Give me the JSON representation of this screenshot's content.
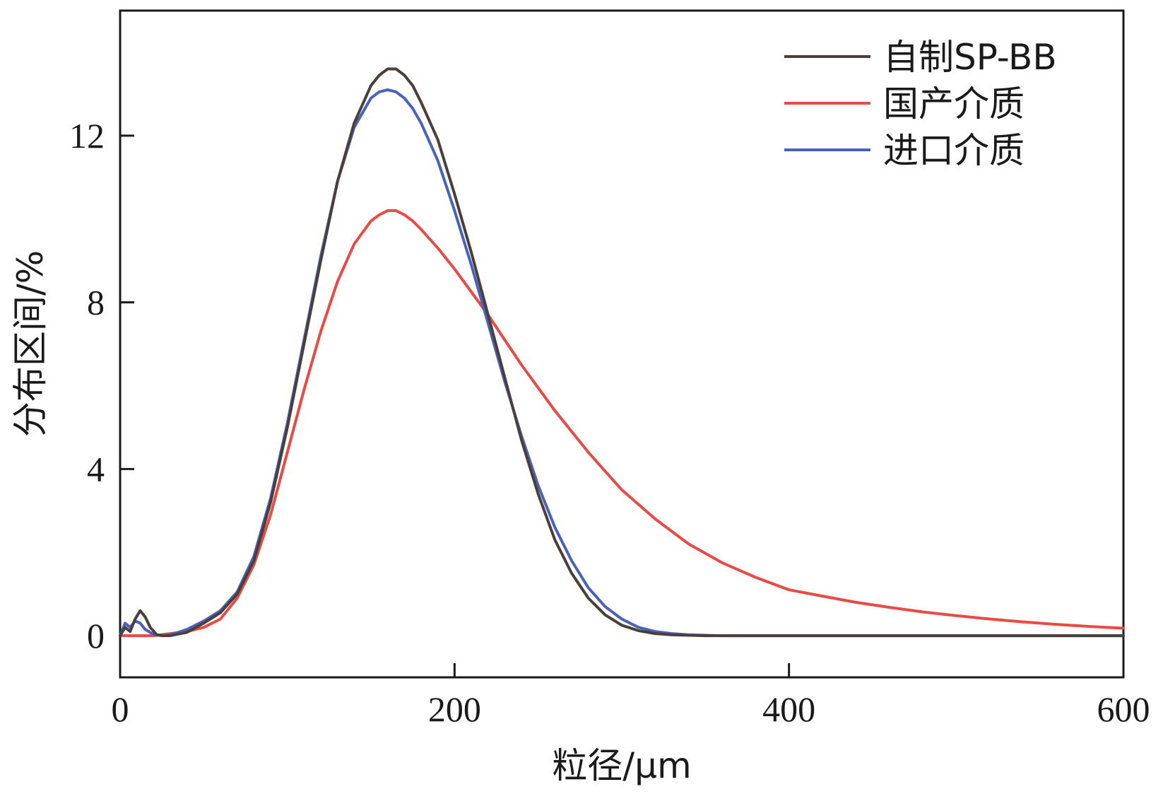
{
  "chart_data": {
    "type": "line",
    "title": "",
    "xlabel": "粒径/μm",
    "ylabel": "分布区间/%",
    "xlim": [
      0,
      600
    ],
    "ylim": [
      -1,
      15
    ],
    "xticks": [
      0,
      200,
      400,
      600
    ],
    "yticks": [
      0,
      4,
      8,
      12
    ],
    "grid": false,
    "legend_position": "top-right",
    "series": [
      {
        "name": "自制SP-BB",
        "color": "#4a3f3a",
        "x": [
          0,
          3,
          6,
          9,
          12,
          15,
          18,
          22,
          26,
          30,
          40,
          50,
          60,
          70,
          80,
          90,
          100,
          110,
          120,
          130,
          140,
          150,
          155,
          160,
          165,
          170,
          175,
          180,
          190,
          200,
          210,
          220,
          230,
          240,
          250,
          260,
          270,
          280,
          290,
          300,
          310,
          320,
          330,
          340,
          350,
          360,
          380,
          400,
          450,
          500,
          550,
          600
        ],
        "values": [
          0.0,
          0.2,
          0.1,
          0.4,
          0.6,
          0.45,
          0.2,
          0.02,
          0.0,
          0.0,
          0.08,
          0.3,
          0.55,
          1.0,
          1.8,
          3.2,
          5.0,
          7.0,
          9.0,
          10.9,
          12.3,
          13.2,
          13.45,
          13.6,
          13.6,
          13.45,
          13.2,
          12.8,
          11.9,
          10.6,
          9.2,
          7.7,
          6.2,
          4.7,
          3.4,
          2.3,
          1.5,
          0.9,
          0.5,
          0.25,
          0.12,
          0.05,
          0.02,
          0.01,
          0.0,
          0.0,
          0.0,
          0.0,
          0.0,
          0.0,
          0.0,
          0.0
        ]
      },
      {
        "name": "国产介质",
        "color": "#e84a45",
        "x": [
          0,
          10,
          20,
          30,
          40,
          50,
          60,
          70,
          80,
          90,
          100,
          110,
          120,
          130,
          140,
          150,
          155,
          160,
          165,
          170,
          175,
          180,
          190,
          200,
          210,
          220,
          230,
          240,
          250,
          260,
          270,
          280,
          290,
          300,
          320,
          340,
          360,
          380,
          400,
          420,
          440,
          460,
          480,
          500,
          520,
          540,
          560,
          580,
          600
        ],
        "values": [
          0.0,
          0.0,
          0.0,
          0.05,
          0.1,
          0.2,
          0.4,
          0.9,
          1.7,
          2.9,
          4.4,
          5.9,
          7.3,
          8.5,
          9.4,
          9.95,
          10.1,
          10.2,
          10.2,
          10.1,
          9.95,
          9.75,
          9.3,
          8.8,
          8.25,
          7.7,
          7.1,
          6.5,
          5.95,
          5.4,
          4.9,
          4.4,
          3.95,
          3.5,
          2.8,
          2.2,
          1.75,
          1.4,
          1.1,
          0.95,
          0.8,
          0.68,
          0.57,
          0.48,
          0.4,
          0.33,
          0.27,
          0.22,
          0.18
        ]
      },
      {
        "name": "进口介质",
        "color": "#4a62b8",
        "x": [
          0,
          3,
          6,
          9,
          12,
          15,
          20,
          25,
          30,
          40,
          50,
          60,
          70,
          80,
          90,
          100,
          110,
          120,
          130,
          140,
          150,
          155,
          160,
          165,
          170,
          175,
          180,
          190,
          200,
          210,
          220,
          230,
          240,
          250,
          260,
          270,
          280,
          290,
          300,
          310,
          320,
          330,
          340,
          350,
          360,
          380,
          400,
          450,
          500,
          550,
          600
        ],
        "values": [
          0.0,
          0.3,
          0.2,
          0.35,
          0.3,
          0.15,
          0.03,
          0.0,
          0.02,
          0.15,
          0.35,
          0.6,
          1.05,
          1.9,
          3.3,
          5.1,
          7.1,
          9.1,
          10.9,
          12.2,
          12.9,
          13.05,
          13.1,
          13.05,
          12.9,
          12.65,
          12.3,
          11.4,
          10.2,
          8.9,
          7.5,
          6.1,
          4.8,
          3.6,
          2.6,
          1.8,
          1.15,
          0.7,
          0.4,
          0.2,
          0.1,
          0.05,
          0.02,
          0.01,
          0.0,
          0.0,
          0.0,
          0.0,
          0.0,
          0.0,
          0.0
        ]
      }
    ]
  }
}
